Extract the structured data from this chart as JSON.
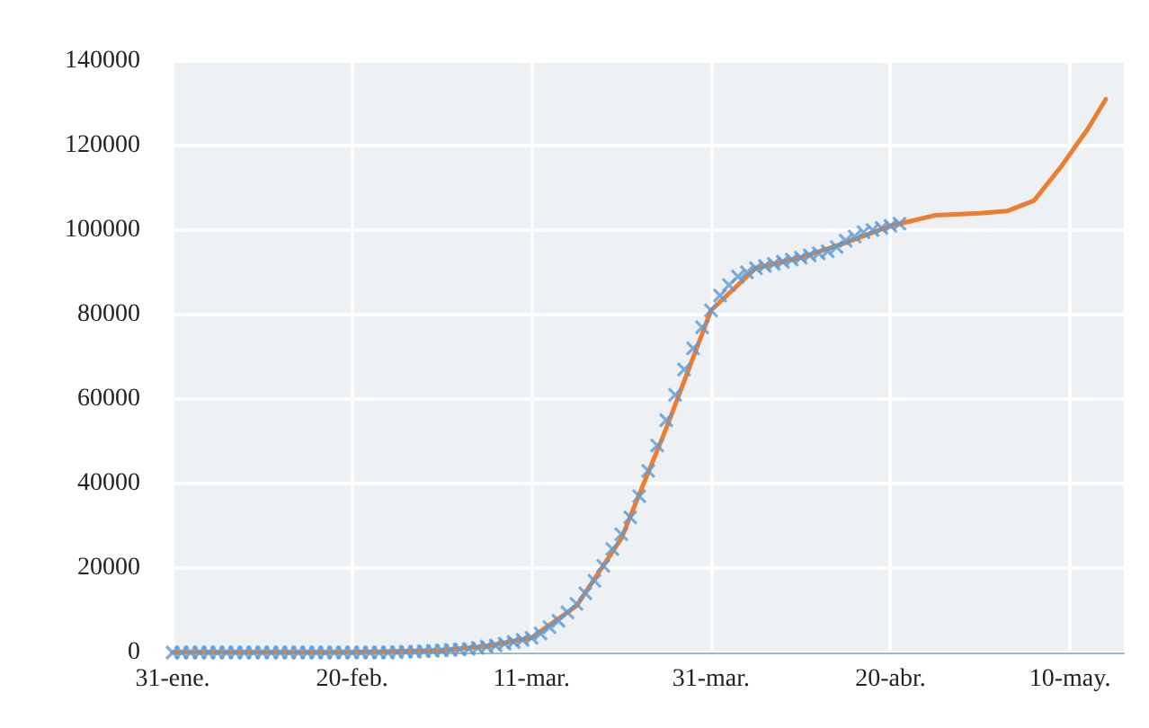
{
  "chart_data": {
    "type": "line",
    "xlim": [
      "--01-31",
      "--05-16"
    ],
    "ylim": [
      0,
      140000
    ],
    "xticks": [
      {
        "value": "--01-31",
        "label": "31-ene."
      },
      {
        "value": "--02-20",
        "label": "20-feb."
      },
      {
        "value": "--03-11",
        "label": "11-mar."
      },
      {
        "value": "--03-31",
        "label": "31-mar."
      },
      {
        "value": "--04-20",
        "label": "20-abr."
      },
      {
        "value": "--05-10",
        "label": "10-may."
      }
    ],
    "yticks": [
      0,
      20000,
      40000,
      60000,
      80000,
      100000,
      120000,
      140000
    ],
    "grid": true,
    "series": [
      {
        "color": "#ed7d31",
        "marker": "none",
        "line_style": "solid",
        "x": [
          "--01-31",
          "--02-20",
          "--03-01",
          "--03-06",
          "--03-11",
          "--03-16",
          "--03-21",
          "--03-26",
          "--03-31",
          "--04-05",
          "--04-10",
          "--04-15",
          "--04-20",
          "--04-25",
          "--04-30",
          "--05-03",
          "--05-06",
          "--05-09",
          "--05-12",
          "--05-14"
        ],
        "values": [
          0,
          0,
          500,
          1500,
          3500,
          11000,
          27000,
          53000,
          81000,
          91000,
          93500,
          97000,
          101000,
          103500,
          104000,
          104500,
          107000,
          115000,
          124000,
          131000
        ]
      },
      {
        "type": "scatter",
        "color": "#5b9bd5",
        "marker": "cross",
        "x": [
          "--01-31",
          "--02-01",
          "--02-02",
          "--02-03",
          "--02-04",
          "--02-05",
          "--02-06",
          "--02-07",
          "--02-08",
          "--02-09",
          "--02-10",
          "--02-11",
          "--02-12",
          "--02-13",
          "--02-14",
          "--02-15",
          "--02-16",
          "--02-17",
          "--02-18",
          "--02-19",
          "--02-20",
          "--02-21",
          "--02-22",
          "--02-23",
          "--02-24",
          "--02-25",
          "--02-26",
          "--02-27",
          "--02-28",
          "--02-29",
          "--03-01",
          "--03-02",
          "--03-03",
          "--03-04",
          "--03-05",
          "--03-06",
          "--03-07",
          "--03-08",
          "--03-09",
          "--03-10",
          "--03-11",
          "--03-12",
          "--03-13",
          "--03-14",
          "--03-15",
          "--03-16",
          "--03-17",
          "--03-18",
          "--03-19",
          "--03-20",
          "--03-21",
          "--03-22",
          "--03-23",
          "--03-24",
          "--03-25",
          "--03-26",
          "--03-27",
          "--03-28",
          "--03-29",
          "--03-30",
          "--03-31",
          "--04-01",
          "--04-02",
          "--04-03",
          "--04-04",
          "--04-05",
          "--04-06",
          "--04-07",
          "--04-08",
          "--04-09",
          "--04-10",
          "--04-11",
          "--04-12",
          "--04-13",
          "--04-14",
          "--04-15",
          "--04-16",
          "--04-17",
          "--04-18",
          "--04-19",
          "--04-20",
          "--04-21"
        ],
        "values": [
          0,
          0,
          0,
          0,
          0,
          0,
          0,
          0,
          0,
          0,
          0,
          0,
          0,
          0,
          0,
          0,
          0,
          0,
          0,
          0,
          0,
          0,
          0,
          0,
          0,
          100,
          200,
          200,
          300,
          400,
          500,
          600,
          700,
          900,
          1100,
          1400,
          1700,
          2100,
          2500,
          3000,
          3500,
          4500,
          6000,
          7500,
          9500,
          11500,
          14000,
          17000,
          20500,
          24500,
          28000,
          32000,
          37000,
          43000,
          49000,
          55000,
          61000,
          67000,
          72000,
          77000,
          81000,
          84500,
          87000,
          89000,
          90000,
          91000,
          91500,
          92000,
          92500,
          93000,
          93500,
          94000,
          94500,
          95000,
          96000,
          97500,
          98500,
          99500,
          100000,
          100500,
          101000,
          101500
        ]
      }
    ]
  }
}
